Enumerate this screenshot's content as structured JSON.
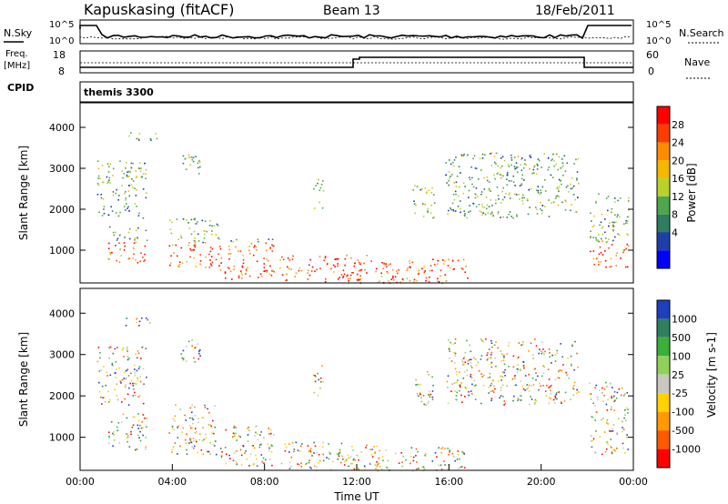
{
  "header": {
    "station": "Kapuskasing (fitACF)",
    "beam": "Beam 13",
    "date": "18/Feb/2011"
  },
  "top_panels": {
    "nsky_label": "N.Sky",
    "nsky_ticks": [
      "10^5",
      "10^0"
    ],
    "nsearch_label": "N.Search",
    "nsearch_ticks": [
      "10^5",
      "10^0"
    ],
    "freq_label_1": "Freq.",
    "freq_label_2": "[MHz]",
    "freq_ticks": [
      "18",
      "8"
    ],
    "nave_label": "Nave",
    "nave_ticks": [
      "60",
      "0"
    ],
    "cpid_label": "CPID",
    "cpid_value": "themis 3300"
  },
  "chart_data": [
    {
      "type": "heatmap",
      "name": "power",
      "ylabel": "Slant Range [km]",
      "y_ticks": [
        1000,
        2000,
        3000,
        4000
      ],
      "ylim": [
        200,
        4600
      ],
      "colorbar_label": "Power [dB]",
      "colorbar_ticks": [
        "4",
        "8",
        "12",
        "16",
        "20",
        "24",
        "28"
      ],
      "colors": [
        "#0000ff",
        "#1f3fa8",
        "#2e7d5e",
        "#4ea64e",
        "#b8d22c",
        "#f4b800",
        "#ff8c00",
        "#ff3c00",
        "#ff0000"
      ]
    },
    {
      "type": "heatmap",
      "name": "velocity",
      "ylabel": "Slant Range [km]",
      "y_ticks": [
        1000,
        2000,
        3000,
        4000
      ],
      "ylim": [
        200,
        4600
      ],
      "colorbar_label": "Velocity [m s-1]",
      "colorbar_ticks": [
        "1000",
        "500",
        "100",
        "25",
        "-25",
        "-100",
        "-500",
        "-1000"
      ],
      "colors": [
        "#1f3fbf",
        "#2e7f5e",
        "#3aaf3a",
        "#8fd25a",
        "#c8c8c0",
        "#ffd200",
        "#ff9a00",
        "#ff5a00",
        "#ff0000"
      ],
      "xlabel": "Time UT",
      "x_ticks": [
        "00:00",
        "04:00",
        "08:00",
        "12:00",
        "16:00",
        "20:00",
        "00:00"
      ]
    }
  ]
}
